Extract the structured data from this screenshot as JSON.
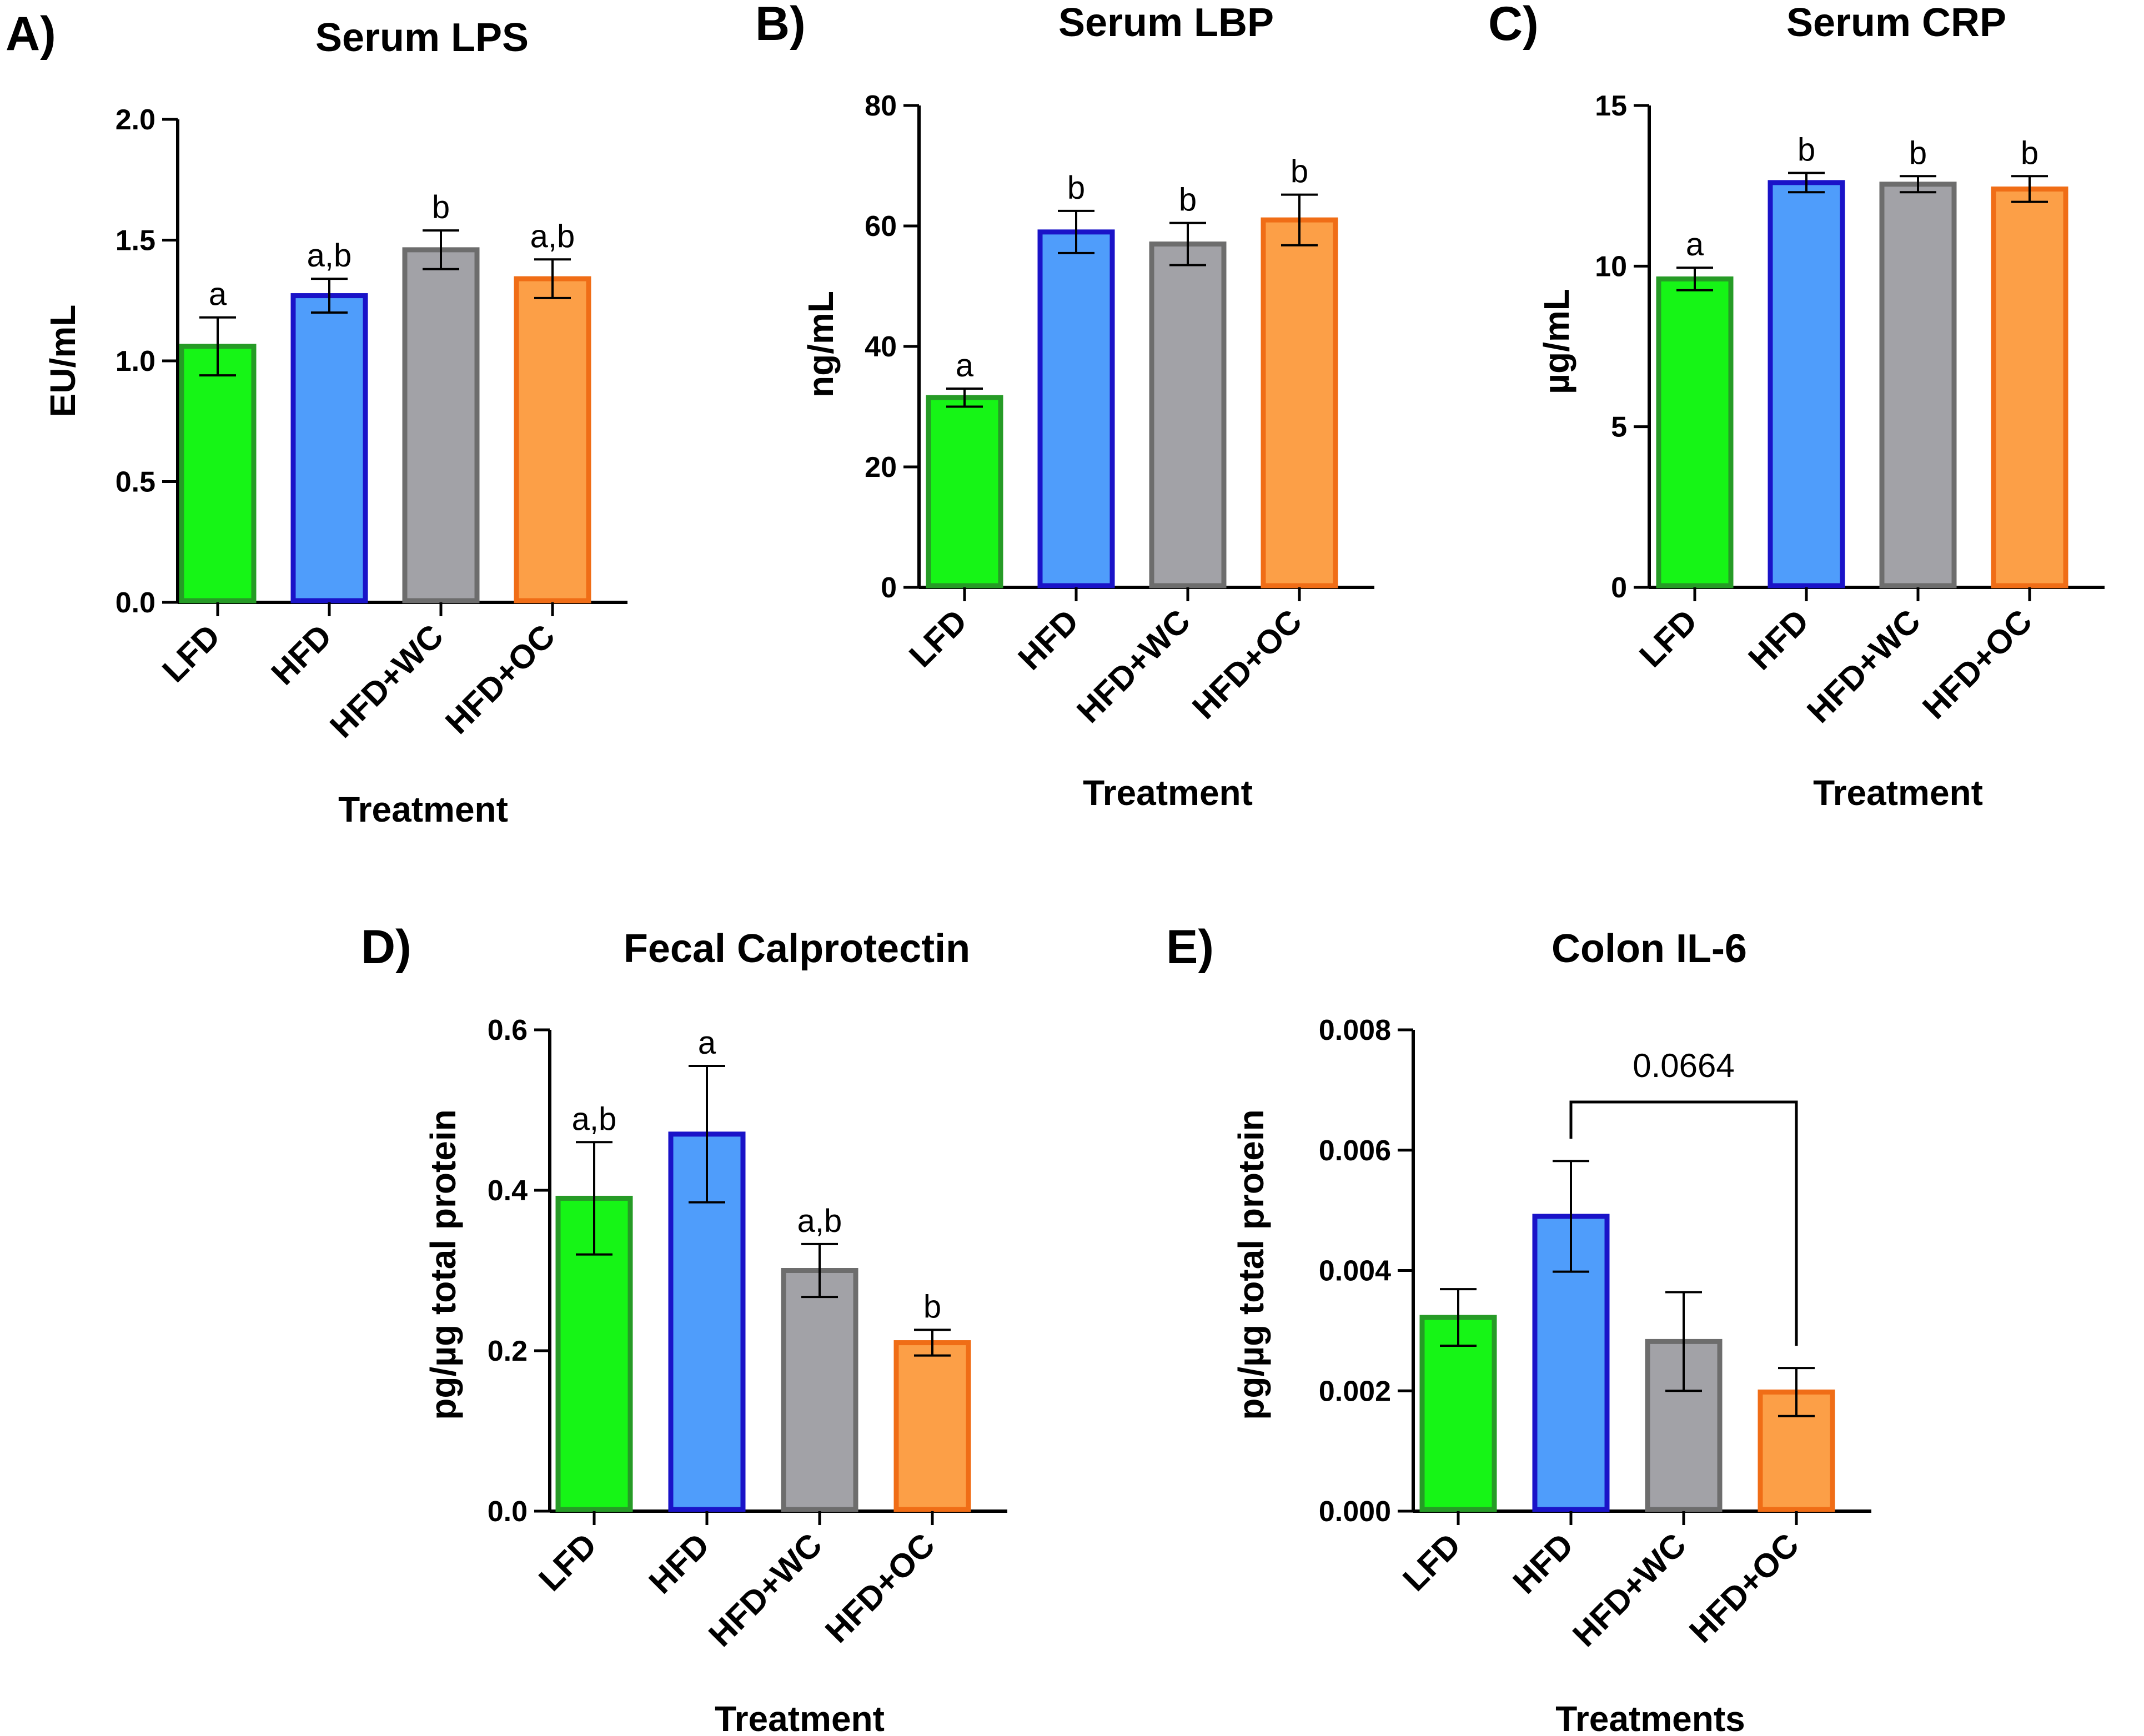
{
  "figure": {
    "panels_count": 5
  },
  "chart_data": [
    {
      "panel": "A)",
      "type": "bar",
      "title": "Serum LPS",
      "xlabel": "Treatment",
      "ylabel": "EU/mL",
      "ylim": [
        0,
        2.0
      ],
      "yticks": [
        "0.0",
        "0.5",
        "1.0",
        "1.5",
        "2.0"
      ],
      "ytick_values": [
        0,
        0.5,
        1.0,
        1.5,
        2.0
      ],
      "categories": [
        "LFD",
        "HFD",
        "HFD+WC",
        "HFD+OC"
      ],
      "values": [
        1.06,
        1.27,
        1.46,
        1.34
      ],
      "errors": [
        0.12,
        0.07,
        0.08,
        0.08
      ],
      "significance": [
        "a",
        "a,b",
        "b",
        "a,b"
      ],
      "fill_colors": [
        "#16f516",
        "#4f9dfb",
        "#a2a2a7",
        "#fc9f47"
      ],
      "edge_colors": [
        "#269b26",
        "#1a13c8",
        "#6d6d6d",
        "#f06d16"
      ]
    },
    {
      "panel": "B)",
      "type": "bar",
      "title": "Serum LBP",
      "xlabel": "Treatment",
      "ylabel": "ng/mL",
      "ylim": [
        0,
        80
      ],
      "yticks": [
        "0",
        "20",
        "40",
        "60",
        "80"
      ],
      "ytick_values": [
        0,
        20,
        40,
        60,
        80
      ],
      "categories": [
        "LFD",
        "HFD",
        "HFD+WC",
        "HFD+OC"
      ],
      "values": [
        31.5,
        59,
        57,
        61
      ],
      "errors": [
        1.5,
        3.5,
        3.5,
        4.2
      ],
      "significance": [
        "a",
        "b",
        "b",
        "b"
      ],
      "fill_colors": [
        "#16f516",
        "#4f9dfb",
        "#a2a2a7",
        "#fc9f47"
      ],
      "edge_colors": [
        "#269b26",
        "#1a13c8",
        "#6d6d6d",
        "#f06d16"
      ]
    },
    {
      "panel": "C)",
      "type": "bar",
      "title": "Serum CRP",
      "xlabel": "Treatment",
      "ylabel": "µg/mL",
      "ylim": [
        0,
        15
      ],
      "yticks": [
        "0",
        "5",
        "10",
        "15"
      ],
      "ytick_values": [
        0,
        5,
        10,
        15
      ],
      "categories": [
        "LFD",
        "HFD",
        "HFD+WC",
        "HFD+OC"
      ],
      "values": [
        9.6,
        12.6,
        12.55,
        12.4
      ],
      "errors": [
        0.35,
        0.3,
        0.25,
        0.4
      ],
      "significance": [
        "a",
        "b",
        "b",
        "b"
      ],
      "fill_colors": [
        "#16f516",
        "#4f9dfb",
        "#a2a2a7",
        "#fc9f47"
      ],
      "edge_colors": [
        "#269b26",
        "#1a13c8",
        "#6d6d6d",
        "#f06d16"
      ]
    },
    {
      "panel": "D)",
      "type": "bar",
      "title": "Fecal Calprotectin",
      "xlabel": "Treatment",
      "ylabel": "pg/µg total protein",
      "ylim": [
        0,
        0.6
      ],
      "yticks": [
        "0.0",
        "0.2",
        "0.4",
        "0.6"
      ],
      "ytick_values": [
        0,
        0.2,
        0.4,
        0.6
      ],
      "categories": [
        "LFD",
        "HFD",
        "HFD+WC",
        "HFD+OC"
      ],
      "values": [
        0.39,
        0.47,
        0.3,
        0.21
      ],
      "errors": [
        0.07,
        0.085,
        0.033,
        0.016
      ],
      "significance": [
        "a,b",
        "a",
        "a,b",
        "b"
      ],
      "fill_colors": [
        "#16f516",
        "#4f9dfb",
        "#a2a2a7",
        "#fc9f47"
      ],
      "edge_colors": [
        "#269b26",
        "#1a13c8",
        "#6d6d6d",
        "#f06d16"
      ]
    },
    {
      "panel": "E)",
      "type": "bar",
      "title": "Colon IL-6",
      "xlabel": "Treatments",
      "ylabel": "pg/µg total protein",
      "ylim": [
        0,
        0.008
      ],
      "yticks": [
        "0.000",
        "0.002",
        "0.004",
        "0.006",
        "0.008"
      ],
      "ytick_values": [
        0,
        0.002,
        0.004,
        0.006,
        0.008
      ],
      "categories": [
        "LFD",
        "HFD",
        "HFD+WC",
        "HFD+OC"
      ],
      "values": [
        0.00322,
        0.0049,
        0.00282,
        0.00198
      ],
      "errors": [
        0.00047,
        0.00092,
        0.00082,
        0.0004
      ],
      "significance": [
        "",
        "",
        "",
        ""
      ],
      "bracket": {
        "from": 1,
        "to": 3,
        "label": "0.0664",
        "level": 0.0068
      },
      "fill_colors": [
        "#16f516",
        "#4f9dfb",
        "#a2a2a7",
        "#fc9f47"
      ],
      "edge_colors": [
        "#269b26",
        "#1a13c8",
        "#6d6d6d",
        "#f06d16"
      ]
    }
  ]
}
